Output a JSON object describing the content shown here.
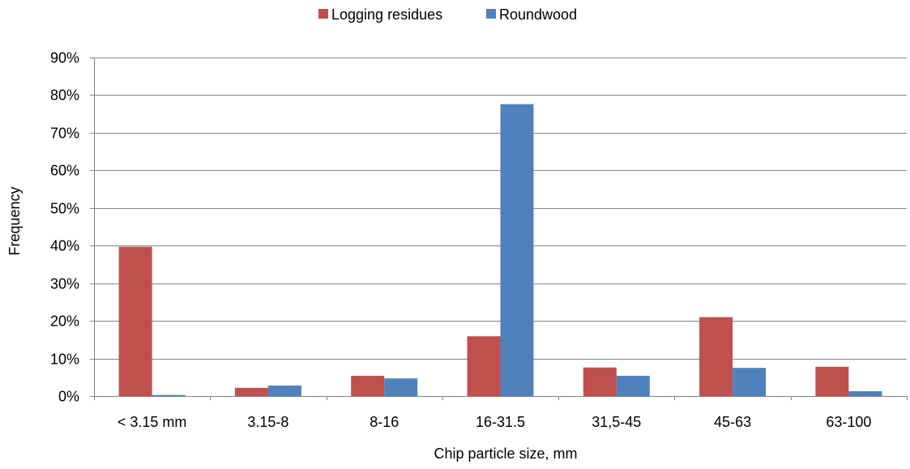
{
  "chart_data": {
    "type": "bar",
    "categories": [
      "< 3.15 mm",
      "3.15-8",
      "8-16",
      "16-31.5",
      "31,5-45",
      "45-63",
      "63-100"
    ],
    "series": [
      {
        "name": "Logging residues",
        "color": "#C0504D",
        "values": [
          0.397,
          0.022,
          0.054,
          0.159,
          0.076,
          0.21,
          0.078
        ]
      },
      {
        "name": "Roundwood",
        "color": "#4F81BD",
        "values": [
          0.003,
          0.028,
          0.047,
          0.776,
          0.054,
          0.075,
          0.013
        ]
      }
    ],
    "xlabel": "Chip particle size, mm",
    "ylabel": "Frequency",
    "ylim": [
      0,
      0.9
    ],
    "yticks": [
      0,
      0.1,
      0.2,
      0.3,
      0.4,
      0.5,
      0.6,
      0.7,
      0.8,
      0.9
    ],
    "ytick_labels": [
      "0%",
      "10%",
      "20%",
      "30%",
      "40%",
      "50%",
      "60%",
      "70%",
      "80%",
      "90%"
    ],
    "grid": true,
    "legend_position": "top-center"
  }
}
